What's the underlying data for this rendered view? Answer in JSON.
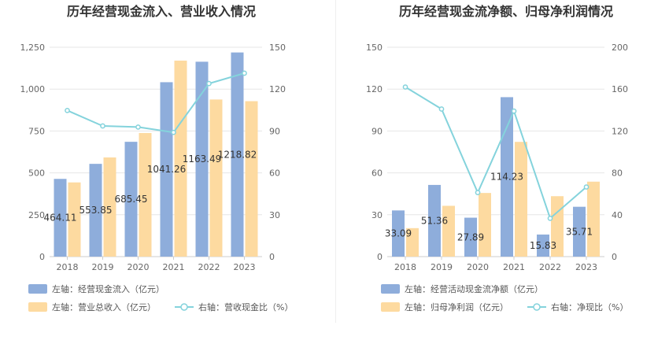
{
  "colors": {
    "bar_left": "#8eaddb",
    "bar_right": "#fddaa0",
    "line": "#84d3dc",
    "grid": "#e6e6e6",
    "axis": "#cccccc"
  },
  "chart_data": [
    {
      "type": "bar",
      "title": "历年经营现金流入、营业收入情况",
      "categories": [
        "2018",
        "2019",
        "2020",
        "2021",
        "2022",
        "2023"
      ],
      "y_left": {
        "ticks": [
          "0",
          "250",
          "500",
          "750",
          "1,000",
          "1,250"
        ],
        "min": 0,
        "max": 1250
      },
      "y_right": {
        "ticks": [
          "0",
          "30",
          "60",
          "90",
          "120",
          "150"
        ],
        "min": 0,
        "max": 150
      },
      "series": [
        {
          "name": "左轴：经营现金流入（亿元）",
          "axis": "left",
          "kind": "bar",
          "values": [
            464.11,
            553.85,
            685.45,
            1041.26,
            1163.49,
            1218.82
          ],
          "labels": [
            "464.11",
            "553.85",
            "685.45",
            "1041.26",
            "1163.49",
            "1218.82"
          ]
        },
        {
          "name": "左轴：营业总收入（亿元）",
          "axis": "left",
          "kind": "bar",
          "values": [
            443,
            592,
            738,
            1170,
            938,
            928
          ]
        },
        {
          "name": "右轴：营收现金比（%）",
          "axis": "right",
          "kind": "line",
          "values": [
            104.7,
            93.6,
            92.8,
            89.0,
            124.0,
            131.4
          ]
        }
      ],
      "grid": true,
      "legend_position": "bottom"
    },
    {
      "type": "bar",
      "title": "历年经营现金流净额、归母净利润情况",
      "categories": [
        "2018",
        "2019",
        "2020",
        "2021",
        "2022",
        "2023"
      ],
      "y_left": {
        "ticks": [
          "0",
          "30",
          "60",
          "90",
          "120",
          "150"
        ],
        "min": 0,
        "max": 150
      },
      "y_right": {
        "ticks": [
          "0",
          "40",
          "80",
          "120",
          "160",
          "200"
        ],
        "min": 0,
        "max": 200
      },
      "series": [
        {
          "name": "左轴：经营活动现金流净额（亿元）",
          "axis": "left",
          "kind": "bar",
          "values": [
            33.09,
            51.36,
            27.89,
            114.23,
            15.83,
            35.71
          ],
          "labels": [
            "33.09",
            "51.36",
            "27.89",
            "114.23",
            "15.83",
            "35.71"
          ]
        },
        {
          "name": "左轴：归母净利润（亿元）",
          "axis": "left",
          "kind": "bar",
          "values": [
            20.4,
            36.4,
            45.6,
            82.2,
            43.3,
            53.7
          ]
        },
        {
          "name": "右轴：净现比（%）",
          "axis": "right",
          "kind": "line",
          "values": [
            162.0,
            141.0,
            61.2,
            139.0,
            36.6,
            66.5
          ]
        }
      ],
      "grid": true,
      "legend_position": "bottom"
    }
  ]
}
